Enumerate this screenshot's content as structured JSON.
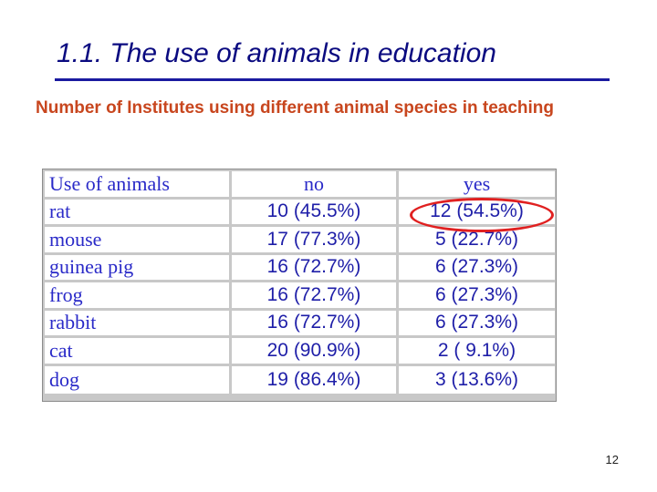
{
  "slide": {
    "title": "1.1. The use of animals in education",
    "subtitle": "Number of Institutes using different animal species in teaching",
    "page_number": "12"
  },
  "table": {
    "headers": {
      "animal": "Use of animals",
      "no": "no",
      "yes": "yes"
    },
    "rows": [
      {
        "animal": "rat",
        "no": "10 (45.5%)",
        "yes": "12 (54.5%)"
      },
      {
        "animal": "mouse",
        "no": "17 (77.3%)",
        "yes": "5 (22.7%)"
      },
      {
        "animal": "guinea pig",
        "no": "16 (72.7%)",
        "yes": "6 (27.3%)"
      },
      {
        "animal": "frog",
        "no": "16 (72.7%)",
        "yes": "6 (27.3%)"
      },
      {
        "animal": "rabbit",
        "no": "16 (72.7%)",
        "yes": "6 (27.3%)"
      },
      {
        "animal": "cat",
        "no": "20 (90.9%)",
        "yes": "2 ( 9.1%)"
      },
      {
        "animal": "dog",
        "no": "19 (86.4%)",
        "yes": "3 (13.6%)"
      }
    ]
  },
  "colors": {
    "title": "#0a0a80",
    "subtitle": "#c8461e",
    "table_text": "#2a2ac8",
    "highlight": "#e02020"
  }
}
